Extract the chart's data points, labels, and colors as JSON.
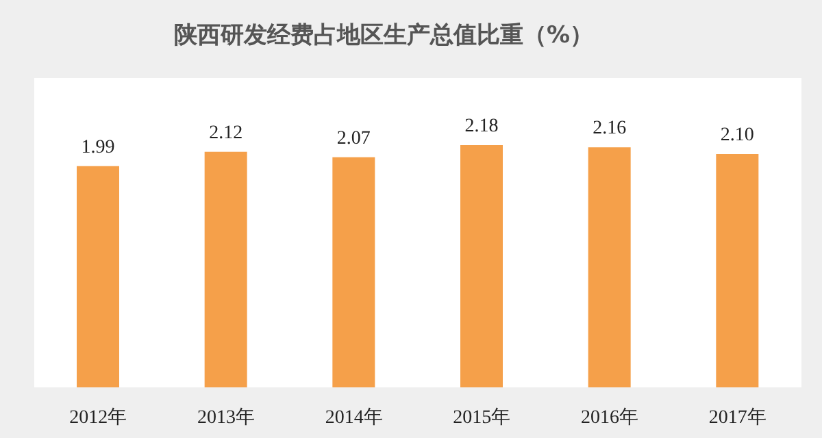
{
  "chart_data": {
    "type": "bar",
    "title": "陕西研发经费占地区生产总值比重（%）",
    "categories": [
      "2012年",
      "2013年",
      "2014年",
      "2015年",
      "2016年",
      "2017年"
    ],
    "values": [
      1.99,
      2.12,
      2.07,
      2.18,
      2.16,
      2.1
    ],
    "value_labels": [
      "1.99",
      "2.12",
      "2.07",
      "2.18",
      "2.16",
      "2.10"
    ],
    "color": "#f5a04a",
    "tick_labels": "x"
  }
}
